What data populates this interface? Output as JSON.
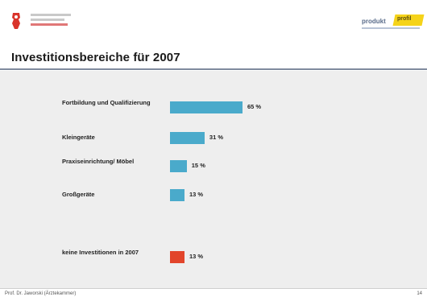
{
  "header": {
    "left_logo_name": "bear-crest-icon",
    "right_logo_word": "produkt",
    "right_logo_tag": "profil"
  },
  "title": "Investitionsbereiche für 2007",
  "chart_data": {
    "type": "bar",
    "orientation": "horizontal",
    "categories": [
      "Fortbildung und Qualifizierung",
      "Kleingeräte",
      "Praxiseinrichtung/ Möbel",
      "Großgeräte",
      "keine Investitionen in 2007"
    ],
    "values": [
      65,
      31,
      15,
      13,
      13
    ],
    "value_labels": [
      "65 %",
      "31 %",
      "15 %",
      "13 %",
      "13 %"
    ],
    "colors": [
      "#4aaacb",
      "#4aaacb",
      "#4aaacb",
      "#4aaacb",
      "#e2452b"
    ],
    "xlim": [
      0,
      65
    ]
  },
  "footer": {
    "text": "Prof. Dr. Jaworski (Ärztekammer)",
    "page": "14"
  }
}
